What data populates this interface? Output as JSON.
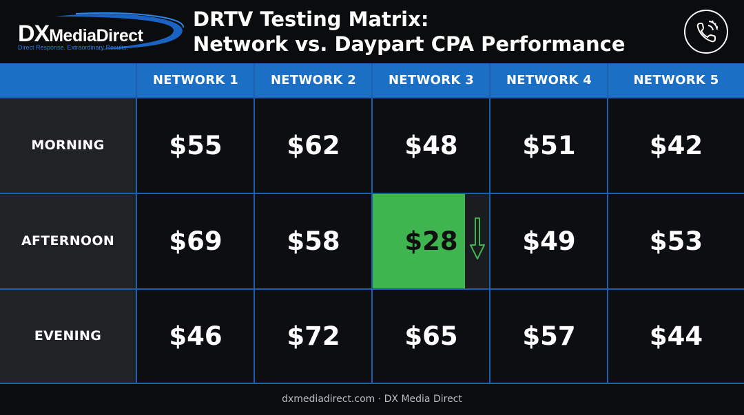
{
  "brand": {
    "logo_dx": "DX",
    "logo_name": "MediaDirect",
    "tagline": "Direct Response. Extraordinary Results."
  },
  "title": {
    "line1": "DRTV Testing Matrix:",
    "line2": "Network vs. Daypart CPA Performance"
  },
  "icons": {
    "phone": "phone-ringing-icon",
    "trend": "arrow-down-icon"
  },
  "colors": {
    "header_blue": "#1b6fc4",
    "highlight_green": "#3fb54f",
    "background": "#0b0c0e"
  },
  "columns": [
    "NETWORK 1",
    "NETWORK 2",
    "NETWORK 3",
    "NETWORK 4",
    "NETWORK 5"
  ],
  "rows": [
    {
      "label": "MORNING",
      "values": [
        "$55",
        "$62",
        "$48",
        "$51",
        "$42"
      ]
    },
    {
      "label": "AFTERNOON",
      "values": [
        "$69",
        "$58",
        "$28",
        "$49",
        "$53"
      ]
    },
    {
      "label": "EVENING",
      "values": [
        "$46",
        "$72",
        "$65",
        "$57",
        "$44"
      ]
    }
  ],
  "highlight": {
    "row": 1,
    "col": 2
  },
  "footer": "dxmediadirect.com · DX Media Direct"
}
